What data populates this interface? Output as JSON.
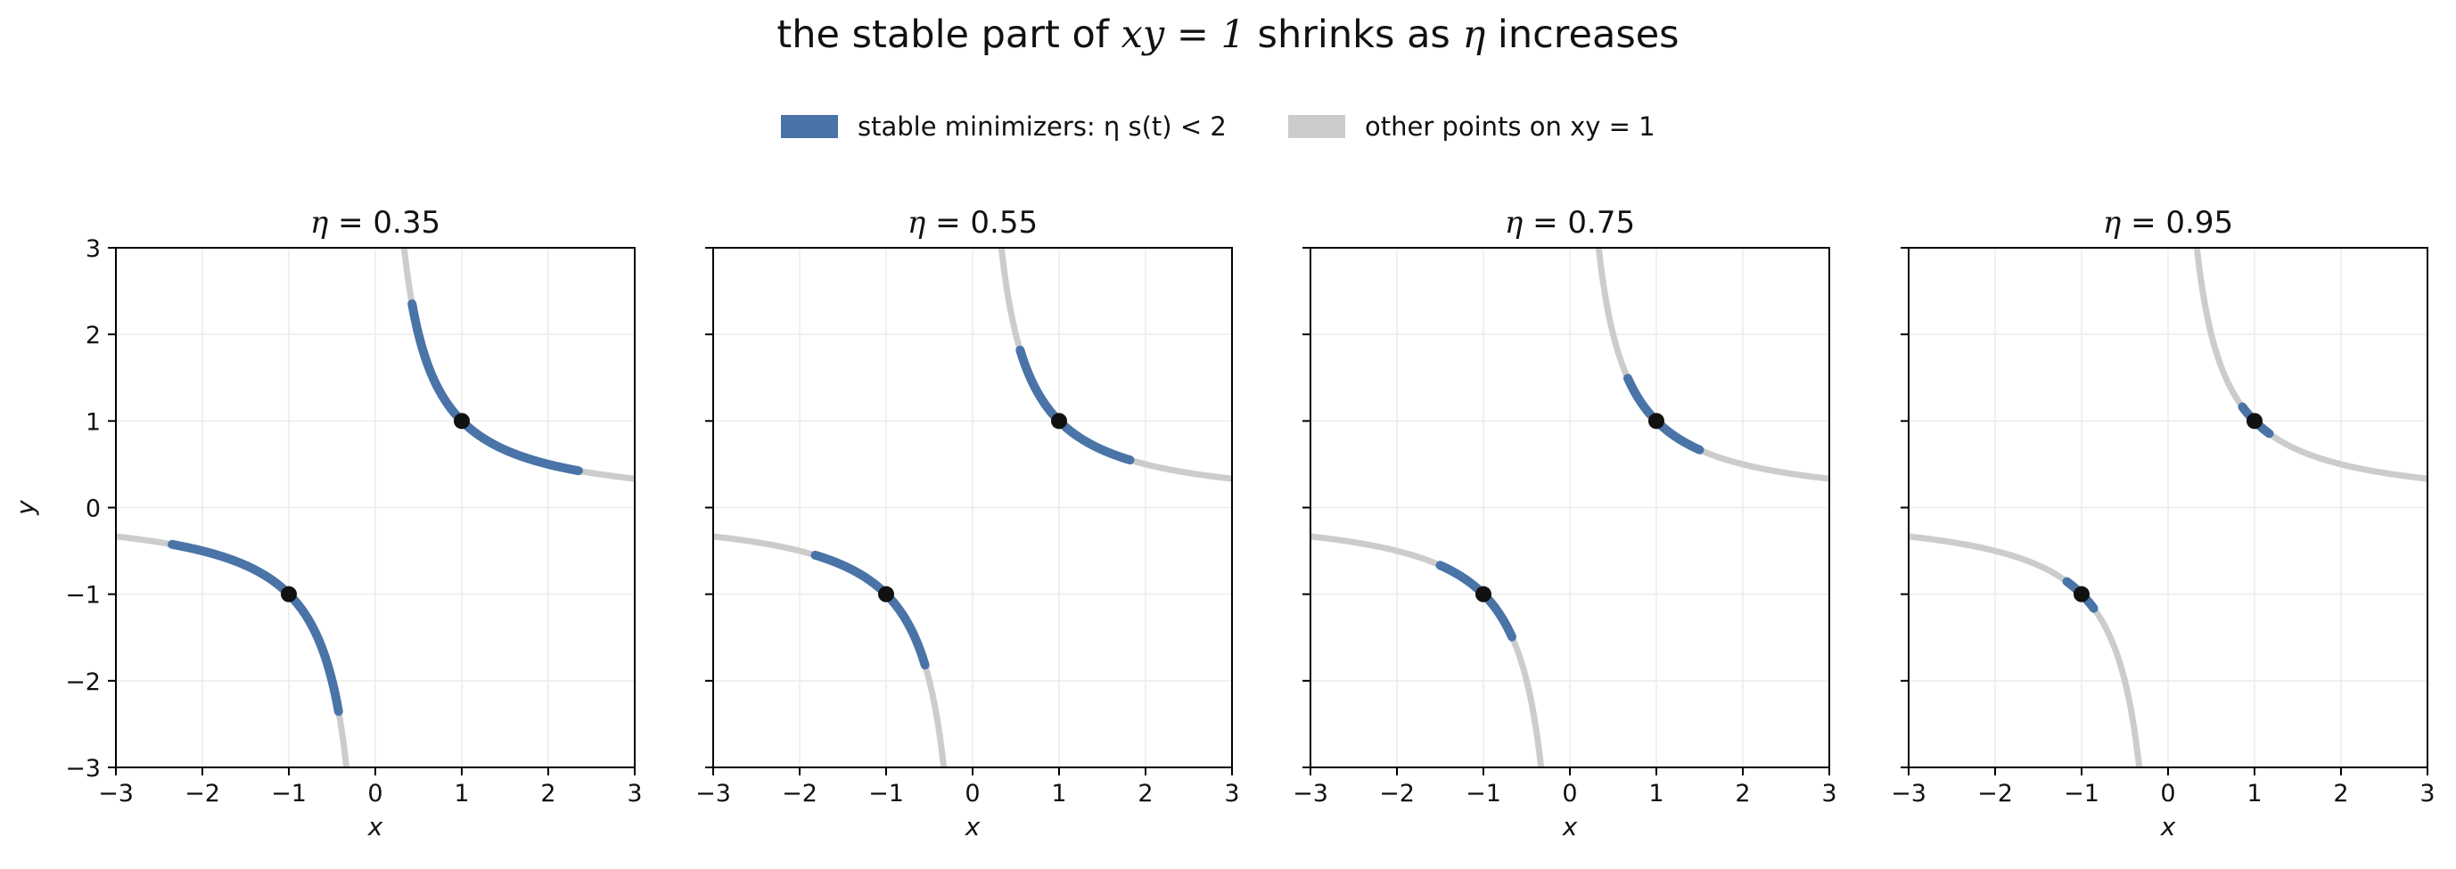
{
  "title": {
    "prefix": "the stable part of ",
    "math": "xy = 1",
    "middle": " shrinks as ",
    "eta": "η",
    "suffix": " increases"
  },
  "legend": {
    "position": "top-center",
    "items": [
      {
        "label": "stable minimizers: η s(t) < 2",
        "color": "#4a74a8"
      },
      {
        "label": "other points on xy = 1",
        "color": "#cccccc"
      }
    ]
  },
  "colors": {
    "stable": "#4a74a8",
    "other": "#cccccc",
    "marker": "#111111",
    "grid": "#ececec",
    "axis": "#000000"
  },
  "chart_data": [
    {
      "type": "line",
      "title": "η = 0.35",
      "eta": 0.35,
      "xlabel": "x",
      "ylabel": "y",
      "xlim": [
        -3,
        3
      ],
      "ylim": [
        -3,
        3
      ],
      "xticks": [
        -3,
        -2,
        -1,
        0,
        1,
        2,
        3
      ],
      "yticks": [
        -3,
        -2,
        -1,
        0,
        1,
        2,
        3
      ],
      "xtick_labels": [
        "−3",
        "−2",
        "−1",
        "0",
        "1",
        "2",
        "3"
      ],
      "ytick_labels": [
        "−3",
        "−2",
        "−1",
        "0",
        "1",
        "2",
        "3"
      ],
      "grid": true,
      "curve": "xy = 1",
      "stable_x_range": [
        0.425,
        2.35
      ],
      "markers": [
        {
          "x": 1,
          "y": 1
        },
        {
          "x": -1,
          "y": -1
        }
      ]
    },
    {
      "type": "line",
      "title": "η = 0.55",
      "eta": 0.55,
      "xlabel": "x",
      "ylabel": "",
      "xlim": [
        -3,
        3
      ],
      "ylim": [
        -3,
        3
      ],
      "xticks": [
        -3,
        -2,
        -1,
        0,
        1,
        2,
        3
      ],
      "yticks": [
        -3,
        -2,
        -1,
        0,
        1,
        2,
        3
      ],
      "xtick_labels": [
        "−3",
        "−2",
        "−1",
        "0",
        "1",
        "2",
        "3"
      ],
      "ytick_labels": [],
      "grid": true,
      "curve": "xy = 1",
      "stable_x_range": [
        0.55,
        1.82
      ],
      "markers": [
        {
          "x": 1,
          "y": 1
        },
        {
          "x": -1,
          "y": -1
        }
      ]
    },
    {
      "type": "line",
      "title": "η = 0.75",
      "eta": 0.75,
      "xlabel": "x",
      "ylabel": "",
      "xlim": [
        -3,
        3
      ],
      "ylim": [
        -3,
        3
      ],
      "xticks": [
        -3,
        -2,
        -1,
        0,
        1,
        2,
        3
      ],
      "yticks": [
        -3,
        -2,
        -1,
        0,
        1,
        2,
        3
      ],
      "xtick_labels": [
        "−3",
        "−2",
        "−1",
        "0",
        "1",
        "2",
        "3"
      ],
      "ytick_labels": [],
      "grid": true,
      "curve": "xy = 1",
      "stable_x_range": [
        0.67,
        1.5
      ],
      "markers": [
        {
          "x": 1,
          "y": 1
        },
        {
          "x": -1,
          "y": -1
        }
      ]
    },
    {
      "type": "line",
      "title": "η = 0.95",
      "eta": 0.95,
      "xlabel": "x",
      "ylabel": "",
      "xlim": [
        -3,
        3
      ],
      "ylim": [
        -3,
        3
      ],
      "xticks": [
        -3,
        -2,
        -1,
        0,
        1,
        2,
        3
      ],
      "yticks": [
        -3,
        -2,
        -1,
        0,
        1,
        2,
        3
      ],
      "xtick_labels": [
        "−3",
        "−2",
        "−1",
        "0",
        "1",
        "2",
        "3"
      ],
      "ytick_labels": [],
      "grid": true,
      "curve": "xy = 1",
      "stable_x_range": [
        0.86,
        1.17
      ],
      "markers": [
        {
          "x": 1,
          "y": 1
        },
        {
          "x": -1,
          "y": -1
        }
      ]
    }
  ]
}
